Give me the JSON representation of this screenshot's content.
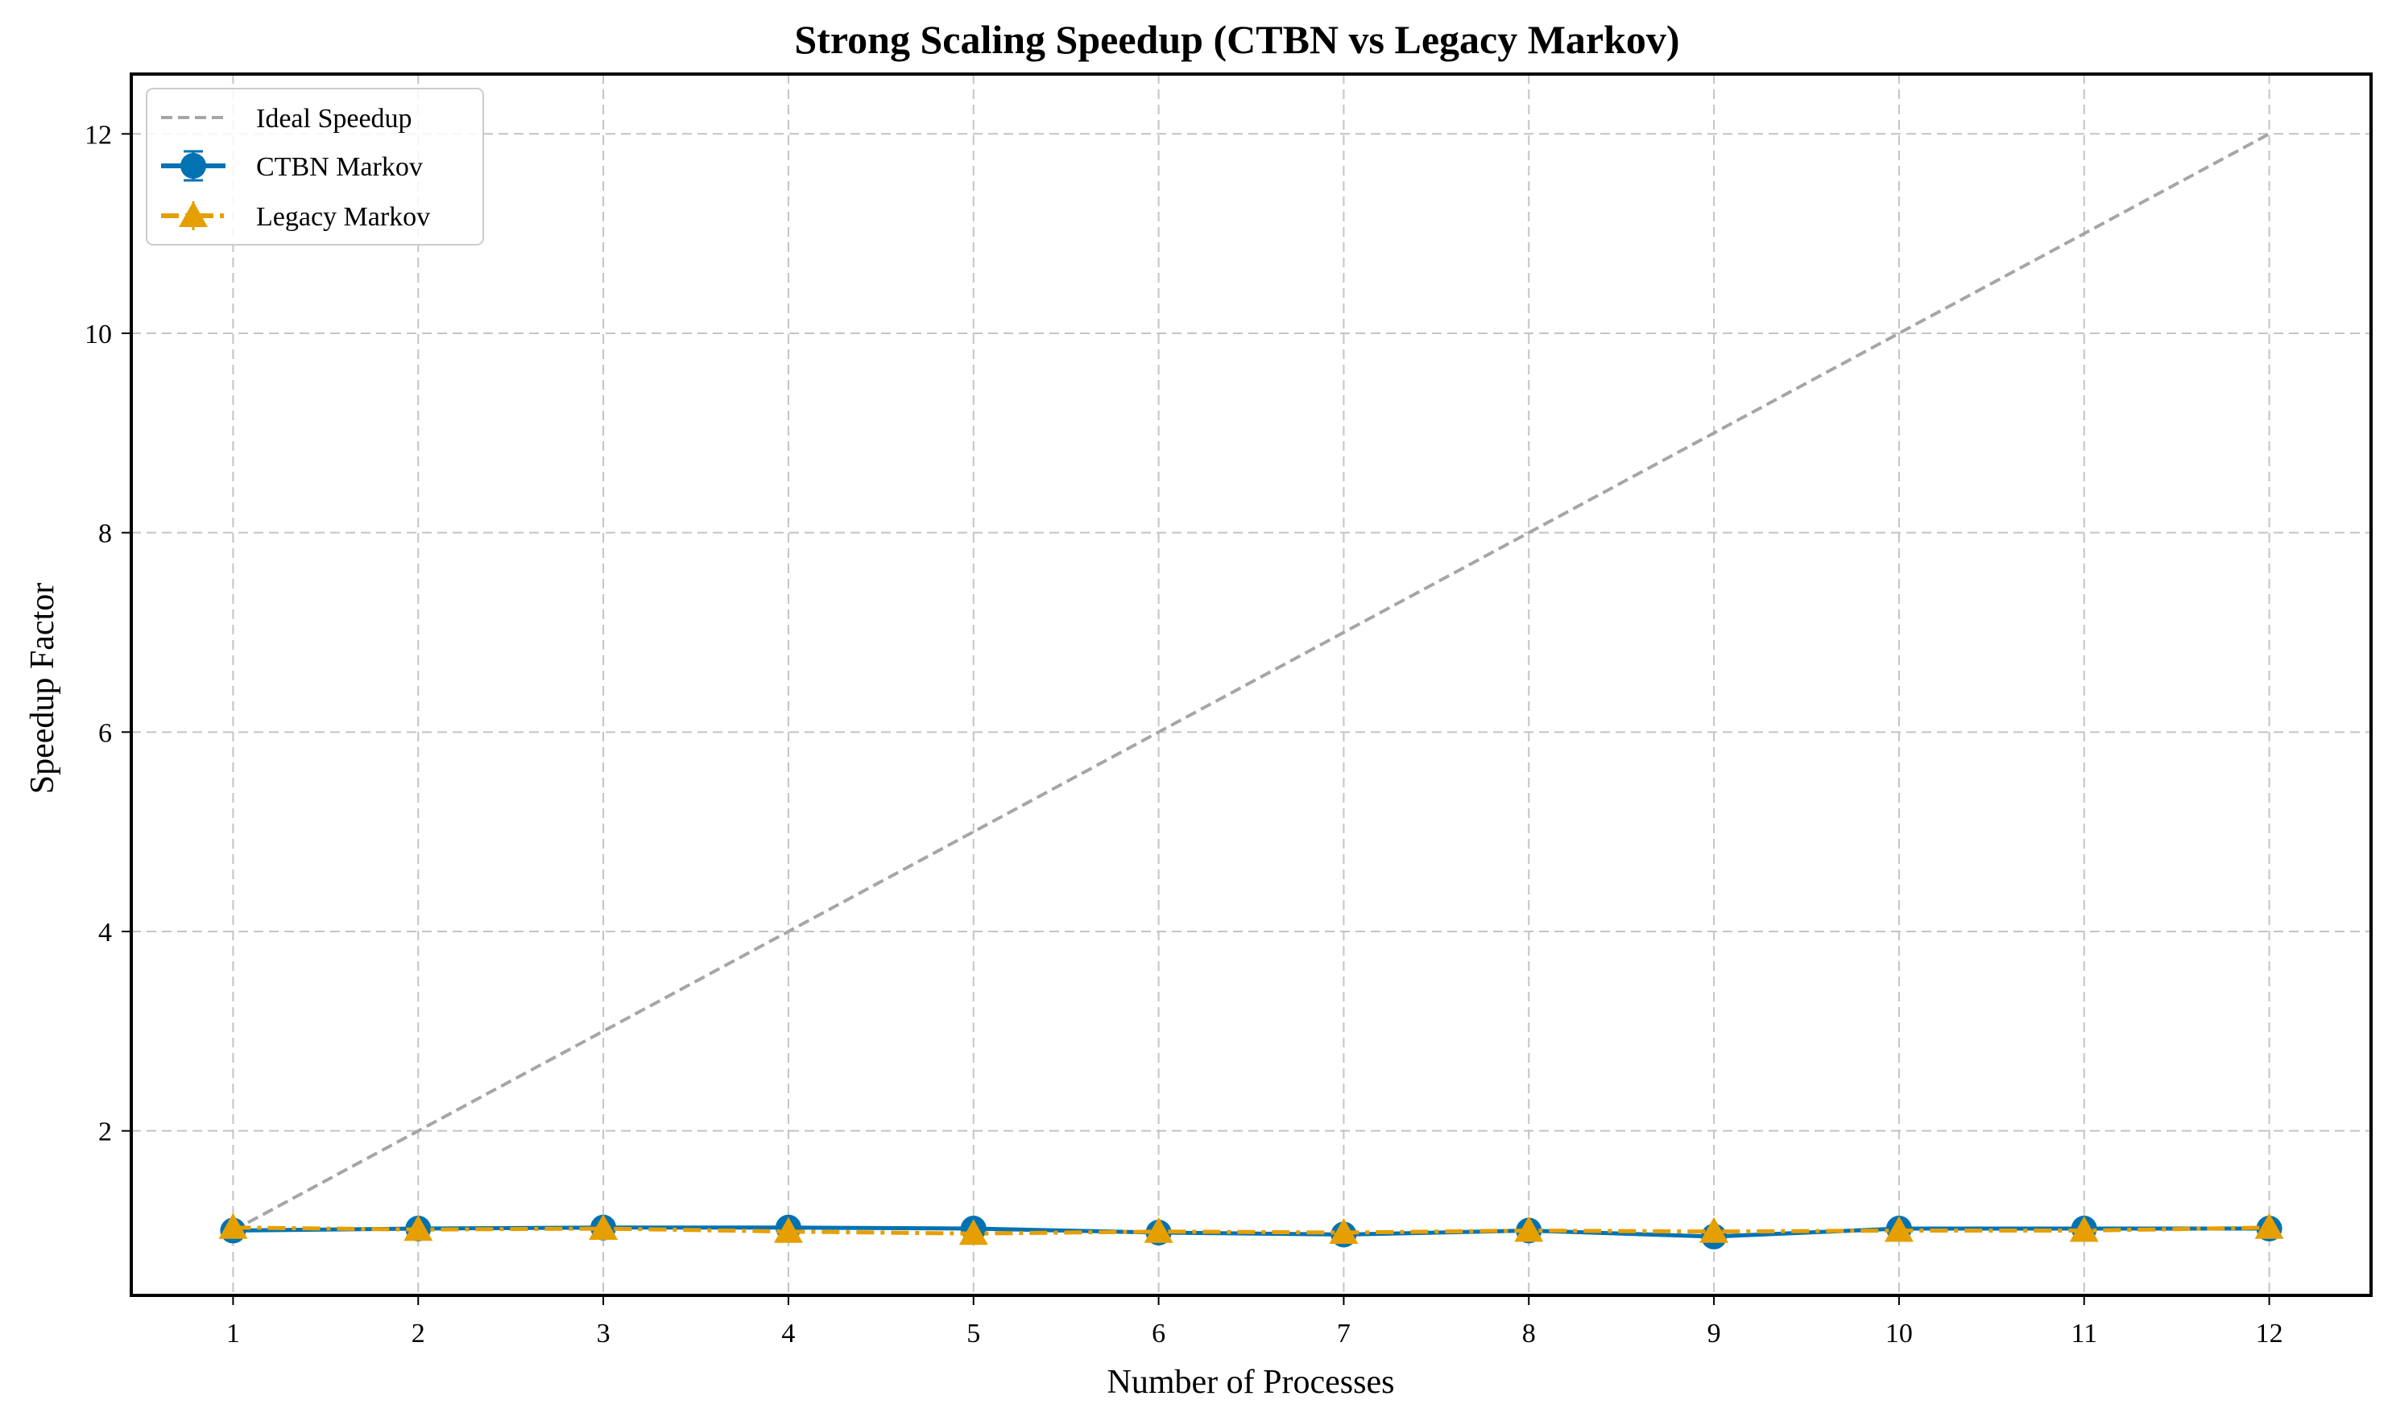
{
  "chart_data": {
    "type": "line",
    "title": "Strong Scaling Speedup (CTBN vs Legacy Markov)",
    "xlabel": "Number of Processes",
    "ylabel": "Speedup Factor",
    "x": [
      1,
      2,
      3,
      4,
      5,
      6,
      7,
      8,
      9,
      10,
      11,
      12
    ],
    "xticks": [
      1,
      2,
      3,
      4,
      5,
      6,
      7,
      8,
      9,
      10,
      11,
      12
    ],
    "yticks": [
      2,
      4,
      6,
      8,
      10,
      12
    ],
    "xlim": [
      0.45,
      12.55
    ],
    "ylim": [
      0.35,
      12.6
    ],
    "grid": true,
    "legend_position": "top-left",
    "series": [
      {
        "name": "Ideal Speedup",
        "style": "dashed",
        "color": "#a6a6a6",
        "x": [
          1,
          12
        ],
        "values": [
          1,
          12
        ]
      },
      {
        "name": "CTBN Markov",
        "style": "solid",
        "marker": "circle",
        "color": "#0072b2",
        "values": [
          1.0,
          1.02,
          1.03,
          1.03,
          1.02,
          0.98,
          0.96,
          1.0,
          0.94,
          1.02,
          1.02,
          1.02
        ]
      },
      {
        "name": "Legacy Markov",
        "style": "dashdot",
        "marker": "triangle",
        "color": "#e69f00",
        "values": [
          1.03,
          1.01,
          1.02,
          0.99,
          0.97,
          0.99,
          0.98,
          1.0,
          0.99,
          1.0,
          1.0,
          1.03
        ]
      }
    ]
  }
}
